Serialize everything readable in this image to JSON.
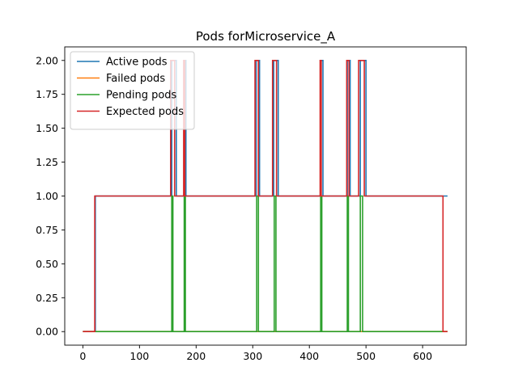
{
  "chart_data": {
    "type": "line",
    "title": "Pods forMicroservice_A",
    "xlabel": "",
    "ylabel": "",
    "xlim": [
      -32,
      677
    ],
    "ylim": [
      -0.1,
      2.1
    ],
    "xticks": [
      0,
      100,
      200,
      300,
      400,
      500,
      600
    ],
    "yticks": [
      0.0,
      0.25,
      0.5,
      0.75,
      1.0,
      1.25,
      1.5,
      1.75,
      2.0
    ],
    "xtick_labels": [
      "0",
      "100",
      "200",
      "300",
      "400",
      "500",
      "600"
    ],
    "ytick_labels": [
      "0.00",
      "0.25",
      "0.50",
      "0.75",
      "1.00",
      "1.25",
      "1.50",
      "1.75",
      "2.00"
    ],
    "grid": false,
    "legend": "top-left",
    "series": [
      {
        "name": "Active pods",
        "color": "#1f77b4",
        "points": [
          [
            0,
            0
          ],
          [
            22,
            0
          ],
          [
            22,
            1
          ],
          [
            157,
            1
          ],
          [
            157,
            2
          ],
          [
            165,
            2
          ],
          [
            165,
            1
          ],
          [
            180,
            1
          ],
          [
            180,
            2
          ],
          [
            182,
            2
          ],
          [
            182,
            1
          ],
          [
            306,
            1
          ],
          [
            306,
            2
          ],
          [
            312,
            2
          ],
          [
            312,
            1
          ],
          [
            337,
            1
          ],
          [
            337,
            2
          ],
          [
            345,
            2
          ],
          [
            345,
            1
          ],
          [
            420,
            1
          ],
          [
            420,
            2
          ],
          [
            424,
            2
          ],
          [
            424,
            1
          ],
          [
            467,
            1
          ],
          [
            467,
            2
          ],
          [
            472,
            2
          ],
          [
            472,
            1
          ],
          [
            490,
            1
          ],
          [
            490,
            2
          ],
          [
            500,
            2
          ],
          [
            500,
            1
          ],
          [
            644,
            1
          ]
        ]
      },
      {
        "name": "Failed pods",
        "color": "#ff7f0e",
        "points": [
          [
            0,
            0
          ],
          [
            644,
            0
          ]
        ]
      },
      {
        "name": "Pending pods",
        "color": "#2ca02c",
        "points": [
          [
            0,
            0
          ],
          [
            157,
            0
          ],
          [
            157,
            1
          ],
          [
            159,
            1
          ],
          [
            159,
            0
          ],
          [
            179,
            0
          ],
          [
            179,
            1
          ],
          [
            181,
            1
          ],
          [
            181,
            0
          ],
          [
            307,
            0
          ],
          [
            307,
            1
          ],
          [
            310,
            1
          ],
          [
            310,
            0
          ],
          [
            338,
            0
          ],
          [
            338,
            1
          ],
          [
            341,
            1
          ],
          [
            341,
            0
          ],
          [
            420,
            0
          ],
          [
            420,
            1
          ],
          [
            422,
            1
          ],
          [
            422,
            0
          ],
          [
            467,
            0
          ],
          [
            467,
            1
          ],
          [
            469,
            1
          ],
          [
            469,
            0
          ],
          [
            490,
            0
          ],
          [
            490,
            1
          ],
          [
            494,
            1
          ],
          [
            494,
            0
          ],
          [
            644,
            0
          ]
        ]
      },
      {
        "name": "Expected pods",
        "color": "#d62728",
        "points": [
          [
            0,
            0
          ],
          [
            21,
            0
          ],
          [
            21,
            1
          ],
          [
            155,
            1
          ],
          [
            155,
            2
          ],
          [
            162,
            2
          ],
          [
            162,
            1
          ],
          [
            178,
            1
          ],
          [
            178,
            2
          ],
          [
            180,
            2
          ],
          [
            180,
            1
          ],
          [
            304,
            1
          ],
          [
            304,
            2
          ],
          [
            310,
            2
          ],
          [
            310,
            1
          ],
          [
            335,
            1
          ],
          [
            335,
            2
          ],
          [
            342,
            2
          ],
          [
            342,
            1
          ],
          [
            419,
            1
          ],
          [
            419,
            2
          ],
          [
            421,
            2
          ],
          [
            421,
            1
          ],
          [
            466,
            1
          ],
          [
            466,
            2
          ],
          [
            470,
            2
          ],
          [
            470,
            1
          ],
          [
            487,
            1
          ],
          [
            487,
            2
          ],
          [
            497,
            2
          ],
          [
            497,
            1
          ],
          [
            636,
            1
          ],
          [
            636,
            0
          ],
          [
            644,
            0
          ]
        ]
      }
    ]
  }
}
